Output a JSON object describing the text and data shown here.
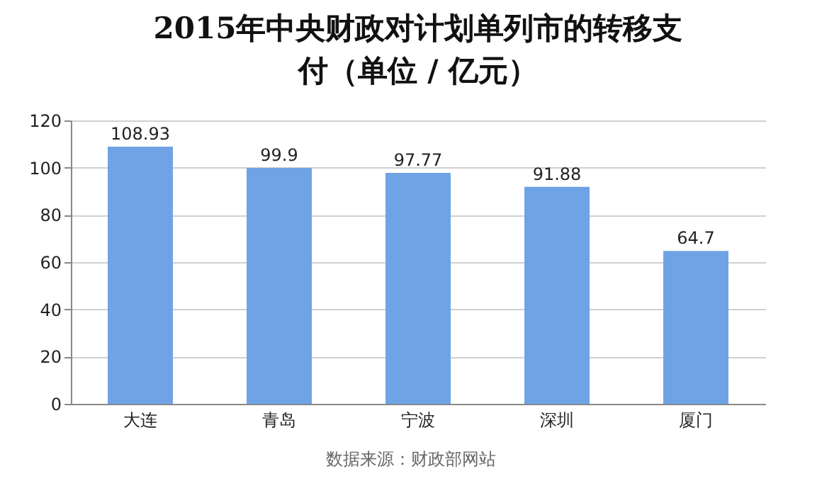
{
  "chart_data": {
    "type": "bar",
    "title": "2015年中央财政对计划单列市的转移支付（单位 / 亿元）",
    "categories": [
      "大连",
      "青岛",
      "宁波",
      "深圳",
      "厦门"
    ],
    "values": [
      108.93,
      99.9,
      97.77,
      91.88,
      64.7
    ],
    "color": "#6fa3e6",
    "ylim": [
      0,
      120
    ],
    "yticks": [
      0,
      20,
      40,
      60,
      80,
      100,
      120
    ],
    "grid": "y",
    "data_labels": true,
    "annotations": [
      "数据来源：财政部网站"
    ]
  }
}
